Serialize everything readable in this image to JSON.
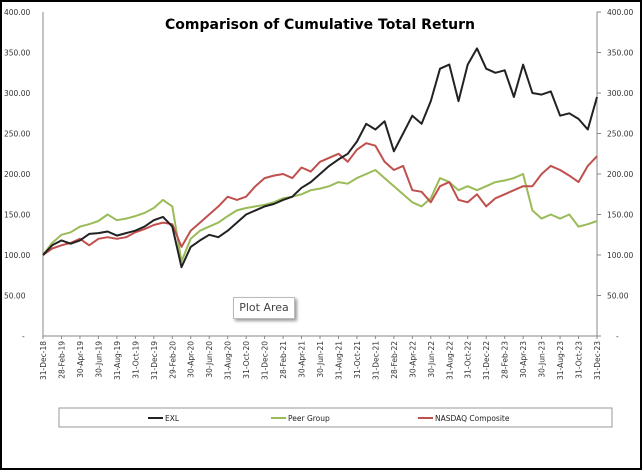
{
  "chart_data": {
    "type": "line",
    "title": "Comparison of Cumulative Total Return",
    "xlabel": "",
    "ylabel": "",
    "ylim": [
      0,
      400
    ],
    "yticks": [
      "-",
      "50.00",
      "100.00",
      "150.00",
      "200.00",
      "250.00",
      "300.00",
      "350.00",
      "400.00"
    ],
    "secondary_yticks": [
      "-",
      "50.00",
      "100.00",
      "150.00",
      "200.00",
      "250.00",
      "300.00",
      "350.00",
      "400.00"
    ],
    "xtick_labels": [
      "31-Dec-18",
      "28-Feb-19",
      "30-Apr-19",
      "30-Jun-19",
      "31-Aug-19",
      "31-Oct-19",
      "31-Dec-19",
      "29-Feb-20",
      "30-Apr-20",
      "30-Jun-20",
      "31-Aug-20",
      "31-Oct-20",
      "31-Dec-20",
      "28-Feb-21",
      "30-Apr-21",
      "30-Jun-21",
      "31-Aug-21",
      "31-Oct-21",
      "31-Dec-21",
      "28-Feb-22",
      "30-Apr-22",
      "30-Jun-22",
      "31-Aug-22",
      "31-Oct-22",
      "31-Dec-22",
      "28-Feb-23",
      "30-Apr-23",
      "30-Jun-23",
      "31-Aug-23",
      "31-Oct-23",
      "31-Dec-23"
    ],
    "x_note_monthly_from": "31-Dec-18",
    "grid": false,
    "legend_position": "bottom",
    "series": [
      {
        "name": "EXL",
        "color": "#222222",
        "values": [
          100,
          112,
          118,
          114,
          118,
          126,
          127,
          129,
          124,
          127,
          130,
          135,
          143,
          147,
          135,
          85,
          110,
          118,
          125,
          122,
          130,
          140,
          150,
          155,
          160,
          163,
          168,
          172,
          183,
          190,
          200,
          210,
          218,
          225,
          240,
          262,
          255,
          265,
          228,
          250,
          272,
          262,
          290,
          330,
          335,
          290,
          335,
          355,
          330,
          325,
          328,
          295,
          335,
          300,
          298,
          302,
          272,
          275,
          268,
          255,
          295
        ]
      },
      {
        "name": "Peer Group",
        "color": "#9bbb59",
        "values": [
          100,
          115,
          125,
          128,
          135,
          138,
          142,
          150,
          143,
          145,
          148,
          152,
          158,
          168,
          160,
          92,
          120,
          130,
          135,
          140,
          148,
          155,
          158,
          160,
          162,
          165,
          170,
          172,
          175,
          180,
          182,
          185,
          190,
          188,
          195,
          200,
          205,
          195,
          185,
          175,
          165,
          160,
          170,
          195,
          190,
          180,
          185,
          180,
          185,
          190,
          192,
          195,
          200,
          155,
          145,
          150,
          145,
          150,
          135,
          138,
          142
        ]
      },
      {
        "name": "NASDAQ Composite",
        "color": "#c0504d",
        "values": [
          100,
          108,
          112,
          115,
          120,
          112,
          120,
          122,
          120,
          122,
          128,
          132,
          137,
          140,
          138,
          110,
          130,
          140,
          150,
          160,
          172,
          168,
          172,
          185,
          195,
          198,
          200,
          195,
          208,
          203,
          215,
          220,
          225,
          215,
          230,
          238,
          235,
          215,
          205,
          210,
          180,
          178,
          165,
          185,
          190,
          168,
          165,
          175,
          160,
          170,
          175,
          180,
          185,
          185,
          200,
          210,
          205,
          198,
          190,
          210,
          222
        ]
      }
    ]
  },
  "tooltip": "Plot Area"
}
